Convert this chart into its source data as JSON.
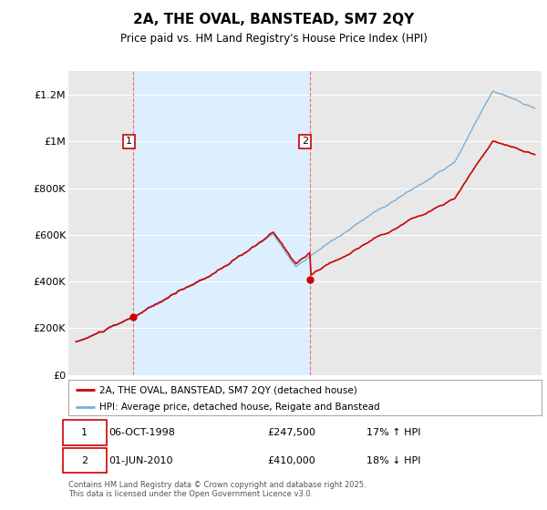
{
  "title": "2A, THE OVAL, BANSTEAD, SM7 2QY",
  "subtitle": "Price paid vs. HM Land Registry's House Price Index (HPI)",
  "ylabel_ticks": [
    "£0",
    "£200K",
    "£400K",
    "£600K",
    "£800K",
    "£1M",
    "£1.2M"
  ],
  "ylim": [
    0,
    1300000
  ],
  "ytick_values": [
    0,
    200000,
    400000,
    600000,
    800000,
    1000000,
    1200000
  ],
  "sale1_date": "06-OCT-1998",
  "sale1_price": 247500,
  "sale1_pct": "17% ↑ HPI",
  "sale2_date": "01-JUN-2010",
  "sale2_price": 410000,
  "sale2_pct": "18% ↓ HPI",
  "legend1": "2A, THE OVAL, BANSTEAD, SM7 2QY (detached house)",
  "legend2": "HPI: Average price, detached house, Reigate and Banstead",
  "footnote": "Contains HM Land Registry data © Crown copyright and database right 2025.\nThis data is licensed under the Open Government Licence v3.0.",
  "sale_color": "#cc0000",
  "vline_color": "#e87070",
  "hpi_color": "#7bafd4",
  "shade_color": "#ddeeff",
  "plot_bg": "#e8e8e8",
  "grid_color": "#ffffff",
  "background_color": "#ffffff",
  "sale1_year": 1998.79,
  "sale2_year": 2010.42,
  "xlim_left": 1994.5,
  "xlim_right": 2025.7
}
